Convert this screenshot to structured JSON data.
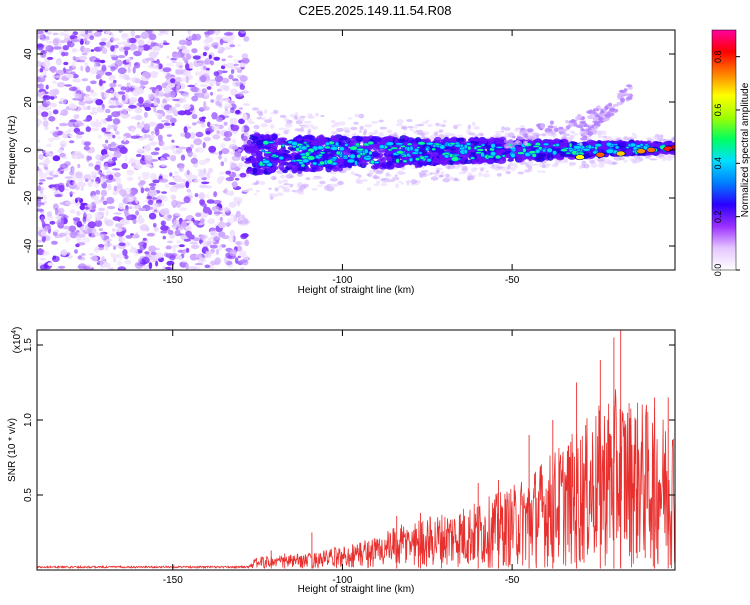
{
  "title": "C2E5.2025.149.11.54.R08",
  "colorbar": {
    "label": "Normalized spectral amplitude",
    "ticks": [
      "0.0",
      "0.2",
      "0.4",
      "0.6",
      "0.8"
    ],
    "tick_values": [
      0.0,
      0.2,
      0.4,
      0.6,
      0.8
    ],
    "max": 0.9,
    "colors": [
      "#ffffff",
      "#e6c6ff",
      "#9b30ff",
      "#2a00ff",
      "#0080ff",
      "#00e0ff",
      "#00ff60",
      "#a0ff00",
      "#ffff00",
      "#ff8000",
      "#ff0000",
      "#ff00a0"
    ]
  },
  "chart_data": [
    {
      "type": "heatmap",
      "title": "",
      "xlabel": "Height of straight line (km)",
      "ylabel": "Frequency (Hz)",
      "xlim": [
        -190,
        -2
      ],
      "ylim": [
        -50,
        50
      ],
      "x_ticks": [
        -150,
        -100,
        -50
      ],
      "x_tick_labels": [
        "-150",
        "-100",
        "-50"
      ],
      "y_ticks": [
        -40,
        -20,
        0,
        20,
        40
      ],
      "y_tick_labels": [
        "-40",
        "-20",
        "0",
        "20",
        "40"
      ],
      "noise_region": {
        "x_from": -190,
        "x_to": -128
      },
      "signal_band": {
        "x_from": -128,
        "x_to": -2,
        "center_start": -2,
        "center_end": 1,
        "halfwidth_start": 9,
        "halfwidth_end": 2
      },
      "branch_features": [
        {
          "x_from": -52,
          "x_to": -22,
          "y_from": 3,
          "y_to": 16
        },
        {
          "x_from": -30,
          "x_to": -15,
          "y_from": 5,
          "y_to": 25
        }
      ]
    },
    {
      "type": "line",
      "title": "",
      "xlabel": "Height of straight line (km)",
      "ylabel": "SNR (10 * v/v)",
      "scale_label_base": "(x10",
      "scale_label_exp": "4",
      "scale_label_close": ")",
      "xlim": [
        -190,
        -2
      ],
      "ylim": [
        0,
        1.6
      ],
      "x_ticks": [
        -150,
        -100,
        -50
      ],
      "x_tick_labels": [
        "-150",
        "-100",
        "-50"
      ],
      "y_ticks": [
        0.5,
        1.0,
        1.5
      ],
      "y_tick_labels": [
        "0.5",
        "1.0",
        "1.5"
      ],
      "color": "#e8312f",
      "envelope": [
        {
          "x": -190,
          "y": 0.02
        },
        {
          "x": -128,
          "y": 0.02
        },
        {
          "x": -125,
          "y": 0.08
        },
        {
          "x": -110,
          "y": 0.1
        },
        {
          "x": -100,
          "y": 0.15
        },
        {
          "x": -90,
          "y": 0.22
        },
        {
          "x": -80,
          "y": 0.32
        },
        {
          "x": -70,
          "y": 0.38
        },
        {
          "x": -60,
          "y": 0.45
        },
        {
          "x": -50,
          "y": 0.55
        },
        {
          "x": -40,
          "y": 0.75
        },
        {
          "x": -30,
          "y": 0.95
        },
        {
          "x": -20,
          "y": 1.2
        },
        {
          "x": -10,
          "y": 1.1
        },
        {
          "x": -2,
          "y": 1.0
        }
      ],
      "spikes": [
        {
          "x": -121,
          "y": 0.13
        },
        {
          "x": -117,
          "y": 0.11
        },
        {
          "x": -109,
          "y": 0.25
        },
        {
          "x": -84,
          "y": 0.36
        },
        {
          "x": -77,
          "y": 0.38
        },
        {
          "x": -60,
          "y": 0.58
        },
        {
          "x": -54,
          "y": 0.6
        },
        {
          "x": -45,
          "y": 0.9
        },
        {
          "x": -38,
          "y": 1.0
        },
        {
          "x": -31,
          "y": 1.25
        },
        {
          "x": -24,
          "y": 1.4
        },
        {
          "x": -20,
          "y": 1.55
        },
        {
          "x": -18,
          "y": 1.65
        },
        {
          "x": -8,
          "y": 1.15
        },
        {
          "x": -4,
          "y": 1.15
        }
      ]
    }
  ]
}
